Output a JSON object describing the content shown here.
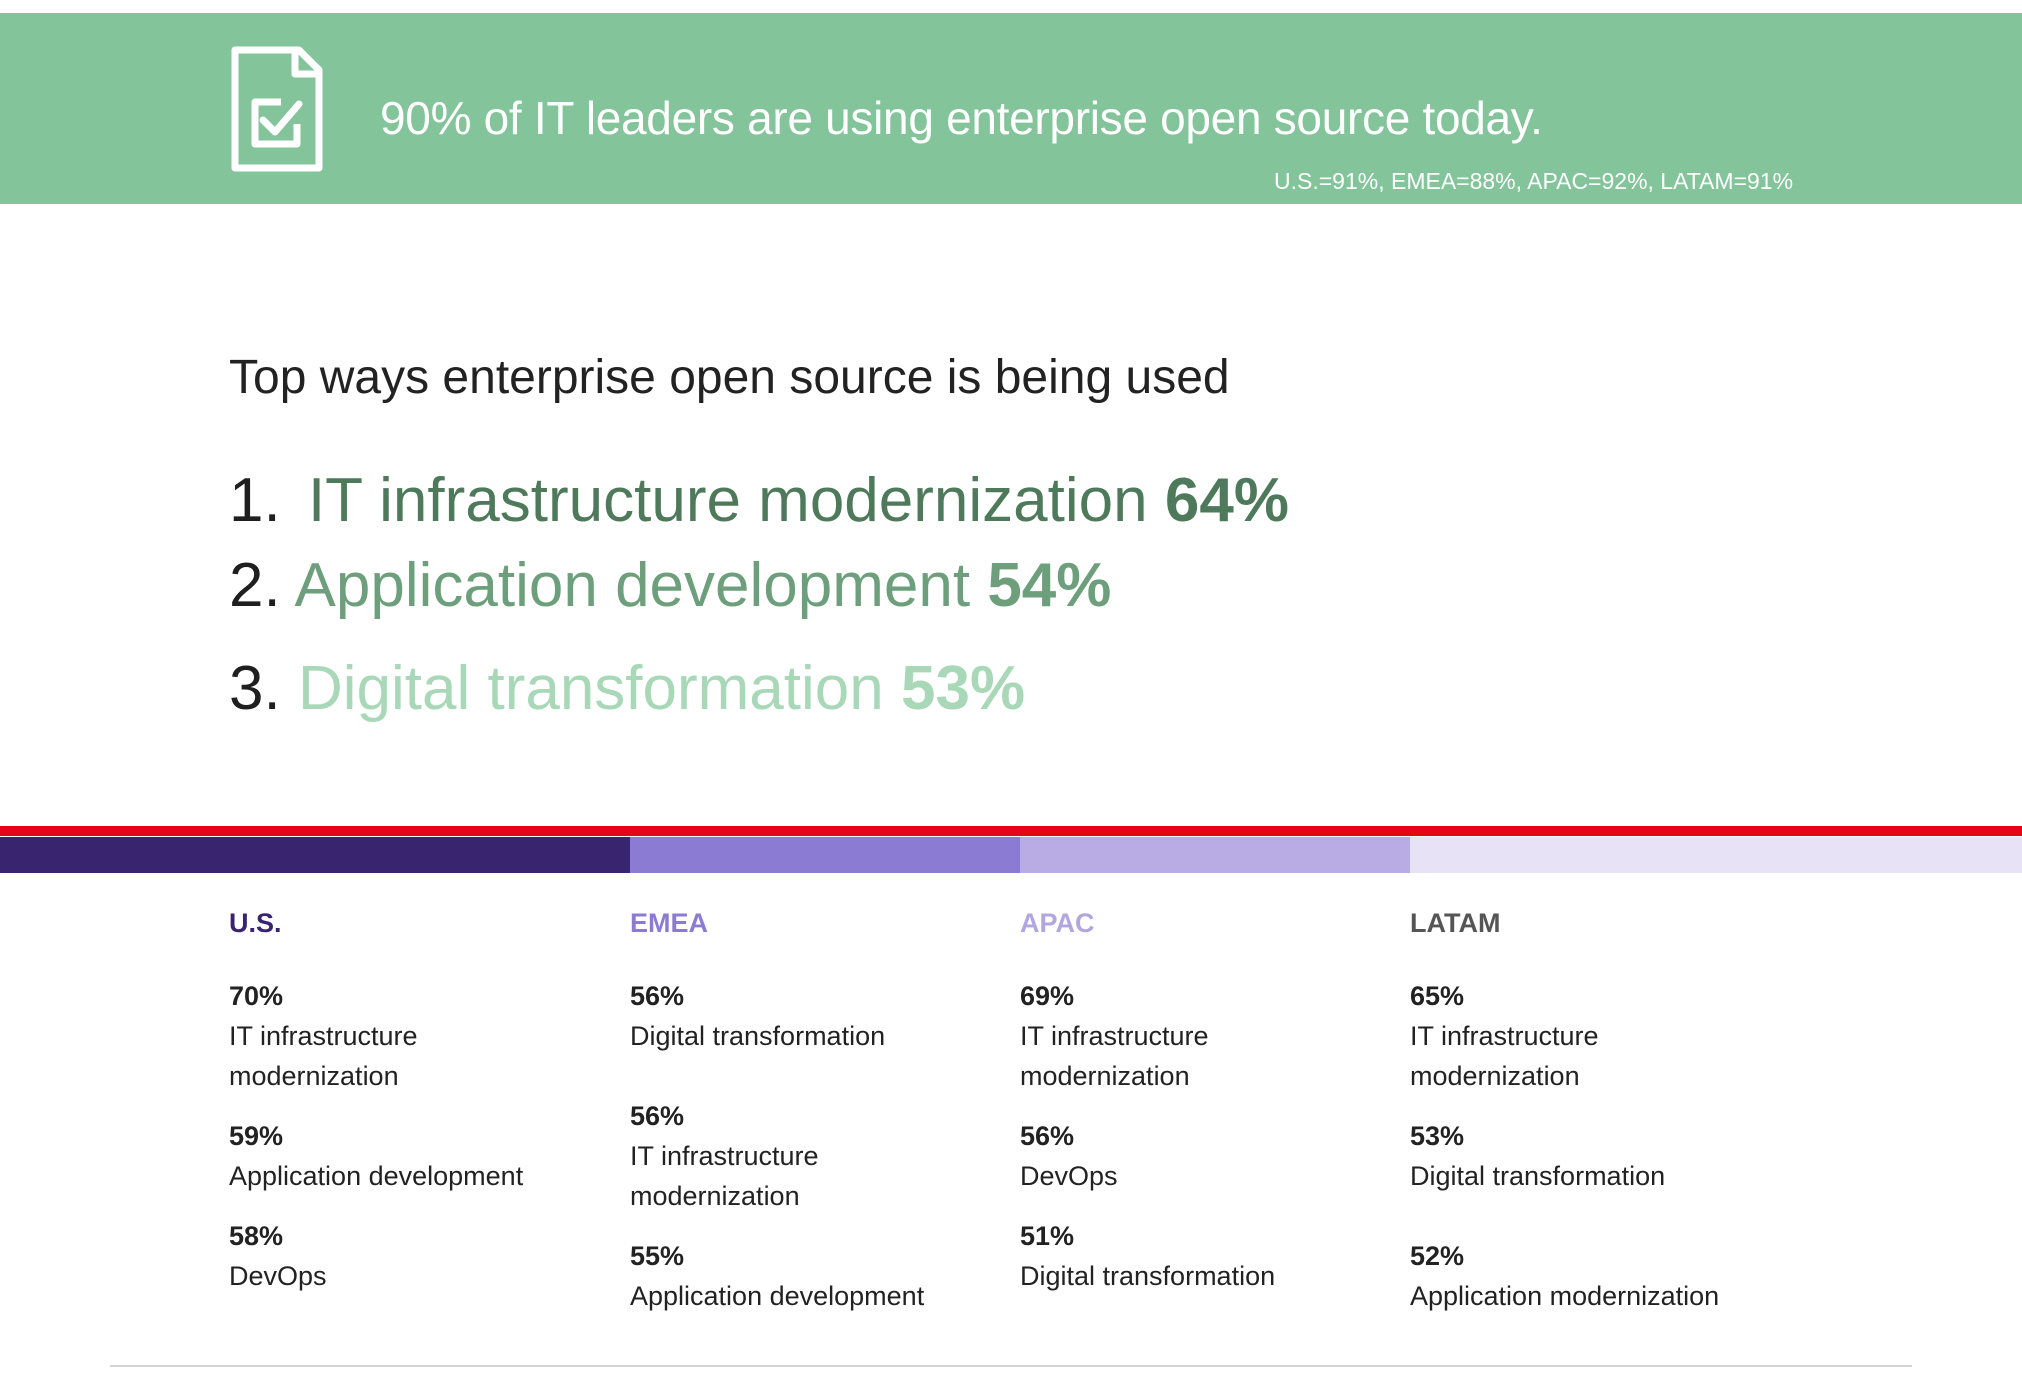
{
  "banner": {
    "headline": "90% of IT leaders are using enterprise open source today.",
    "regional_stats": "U.S.=91%, EMEA=88%, APAC=92%, LATAM=91%",
    "icon": "checklist-document-icon",
    "background_color": "#83c49b"
  },
  "top_ways": {
    "title": "Top ways enterprise open source is being used",
    "items": [
      {
        "rank": "1.",
        "label": "IT infrastructure modernization",
        "percent": "64%",
        "color": "#4e7a5b"
      },
      {
        "rank": "2.",
        "label": "Application development",
        "percent": "54%",
        "color": "#6e9f7c"
      },
      {
        "rank": "3.",
        "label": "Digital transformation",
        "percent": "53%",
        "color": "#a8d8b7"
      }
    ]
  },
  "regions": [
    {
      "name": "U.S.",
      "color": "#392470",
      "stats": [
        {
          "percent": "70%",
          "label": "IT infrastructure modernization"
        },
        {
          "percent": "59%",
          "label": "Application development"
        },
        {
          "percent": "58%",
          "label": "DevOps"
        }
      ]
    },
    {
      "name": "EMEA",
      "color": "#8c7bd3",
      "stats": [
        {
          "percent": "56%",
          "label": "Digital transformation"
        },
        {
          "percent": "56%",
          "label": "IT infrastructure modernization"
        },
        {
          "percent": "55%",
          "label": "Application development"
        }
      ]
    },
    {
      "name": "APAC",
      "color": "#b9abe4",
      "stats": [
        {
          "percent": "69%",
          "label": "IT infrastructure modernization"
        },
        {
          "percent": "56%",
          "label": "DevOps"
        },
        {
          "percent": "51%",
          "label": "Digital transformation"
        }
      ]
    },
    {
      "name": "LATAM",
      "color": "#e7e2f5",
      "stats": [
        {
          "percent": "65%",
          "label": "IT infrastructure modernization"
        },
        {
          "percent": "53%",
          "label": "Digital transformation"
        },
        {
          "percent": "52%",
          "label": "Application modernization"
        }
      ]
    }
  ],
  "accent_color": "#e30613"
}
